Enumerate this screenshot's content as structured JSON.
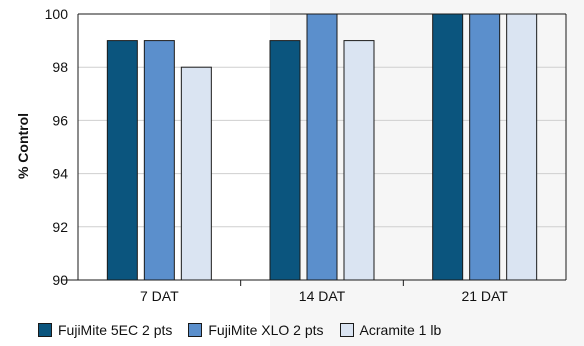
{
  "chart_data": {
    "type": "bar",
    "categories": [
      "7 DAT",
      "14 DAT",
      "21 DAT"
    ],
    "series": [
      {
        "name": "FujiMite 5EC 2 pts",
        "values": [
          99,
          99,
          100
        ],
        "color": "#0b557e"
      },
      {
        "name": "FujiMite XLO 2 pts",
        "values": [
          99,
          100,
          100
        ],
        "color": "#5b8fcc"
      },
      {
        "name": "Acramite 1 lb",
        "values": [
          98,
          99,
          100
        ],
        "color": "#dae4f2"
      }
    ],
    "ylabel": "% Control",
    "ylim": [
      90,
      100
    ],
    "yticks": [
      90,
      92,
      94,
      96,
      98,
      100
    ],
    "grid": true,
    "legend_position": "bottom"
  }
}
